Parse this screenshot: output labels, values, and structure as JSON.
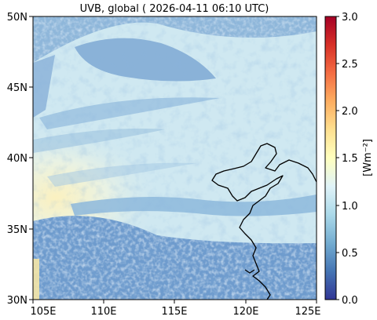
{
  "title": "UVB, global ( 2026-04-11 06:10 UTC)",
  "map": {
    "lon_ticks": [
      "105E",
      "110E",
      "115E",
      "120E",
      "125E"
    ],
    "lat_ticks": [
      "50N",
      "45N",
      "40N",
      "35N",
      "30N"
    ],
    "lon_range": [
      105,
      125
    ],
    "lat_range": [
      30,
      50
    ]
  },
  "colorbar": {
    "label": "[Wm⁻²]",
    "ticks": [
      "3.0",
      "2.5",
      "2.0",
      "1.5",
      "1.0",
      "0.5",
      "0.0"
    ],
    "range": [
      0.0,
      3.0
    ],
    "colormap": "RdYlBu_r",
    "stops": [
      "#313695",
      "#4575b4",
      "#74add1",
      "#abd9e9",
      "#e0f3f8",
      "#ffffbf",
      "#fee090",
      "#fdae61",
      "#f46d43",
      "#d73027",
      "#a50026"
    ]
  },
  "colors": {
    "clear_sky": "#cfe8f1",
    "warm_patch": "#f6f0c4",
    "cloud_dark": "#5b8ac2",
    "cloud_mid": "#86b1d8",
    "coastline": "#000000"
  }
}
